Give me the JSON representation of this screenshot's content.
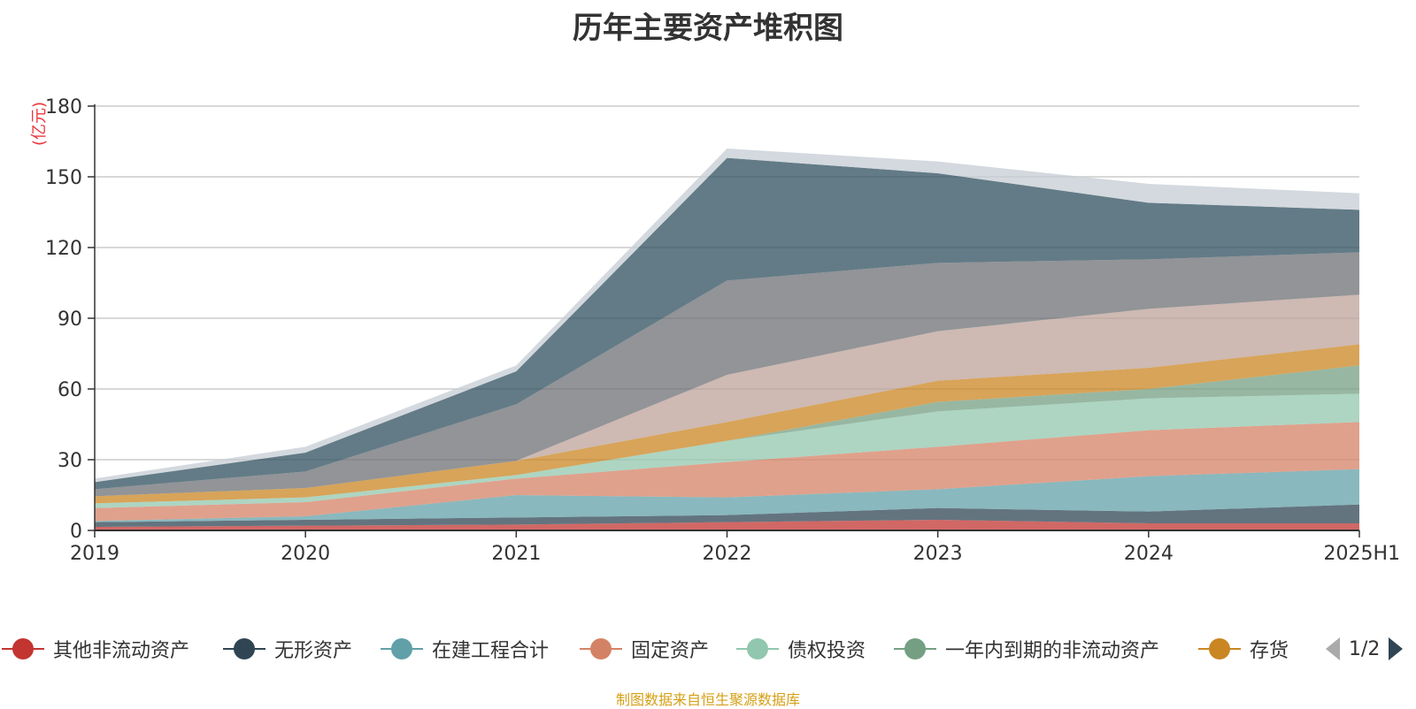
{
  "chart_data": {
    "type": "area",
    "stacked": true,
    "title": "历年主要资产堆积图",
    "ylabel": "(亿元)",
    "xlabel": "",
    "x": [
      "2019",
      "2020",
      "2021",
      "2022",
      "2023",
      "2024",
      "2025H1"
    ],
    "ylim": [
      0,
      180
    ],
    "yticks": [
      0,
      30,
      60,
      90,
      120,
      150,
      180
    ],
    "grid": true,
    "series": [
      {
        "name": "其他非流动资产",
        "color": "#c23531",
        "values": [
          1.5,
          2,
          2.5,
          3.5,
          4.5,
          3,
          3
        ]
      },
      {
        "name": "无形资产",
        "color": "#2f4554",
        "values": [
          2,
          2.5,
          3,
          3,
          5,
          5,
          8
        ]
      },
      {
        "name": "在建工程合计",
        "color": "#61a0a8",
        "values": [
          0.5,
          1.5,
          9.5,
          7.5,
          8,
          15,
          15
        ]
      },
      {
        "name": "固定资产",
        "color": "#d48265",
        "values": [
          5.5,
          6,
          7,
          15,
          18,
          19.5,
          20
        ]
      },
      {
        "name": "债权投资",
        "color": "#91c7ae",
        "values": [
          2,
          2,
          1.5,
          9,
          15,
          13.5,
          12
        ]
      },
      {
        "name": "一年内到期的非流动资产",
        "color": "#749f83",
        "values": [
          0,
          0,
          0,
          0,
          4,
          4,
          12
        ]
      },
      {
        "name": "存货",
        "color": "#ca8622",
        "values": [
          3,
          4,
          6,
          8,
          9,
          9,
          9
        ]
      },
      {
        "name": "",
        "color": "#bda29a",
        "values": [
          0,
          0,
          0,
          20,
          21,
          25,
          21
        ]
      },
      {
        "name": "",
        "color": "#6e7074",
        "values": [
          3,
          7,
          24,
          40,
          29,
          21,
          18
        ]
      },
      {
        "name": "",
        "color": "#2f4f5f",
        "values": [
          3,
          8,
          14,
          52,
          38,
          24,
          18
        ]
      },
      {
        "name": "",
        "color": "#c4ccd3",
        "values": [
          1.5,
          2.5,
          2.5,
          4,
          5,
          8,
          7
        ]
      }
    ]
  },
  "legend": {
    "page_indicator": "1/2"
  },
  "source_note": "制图数据来自恒生聚源数据库"
}
